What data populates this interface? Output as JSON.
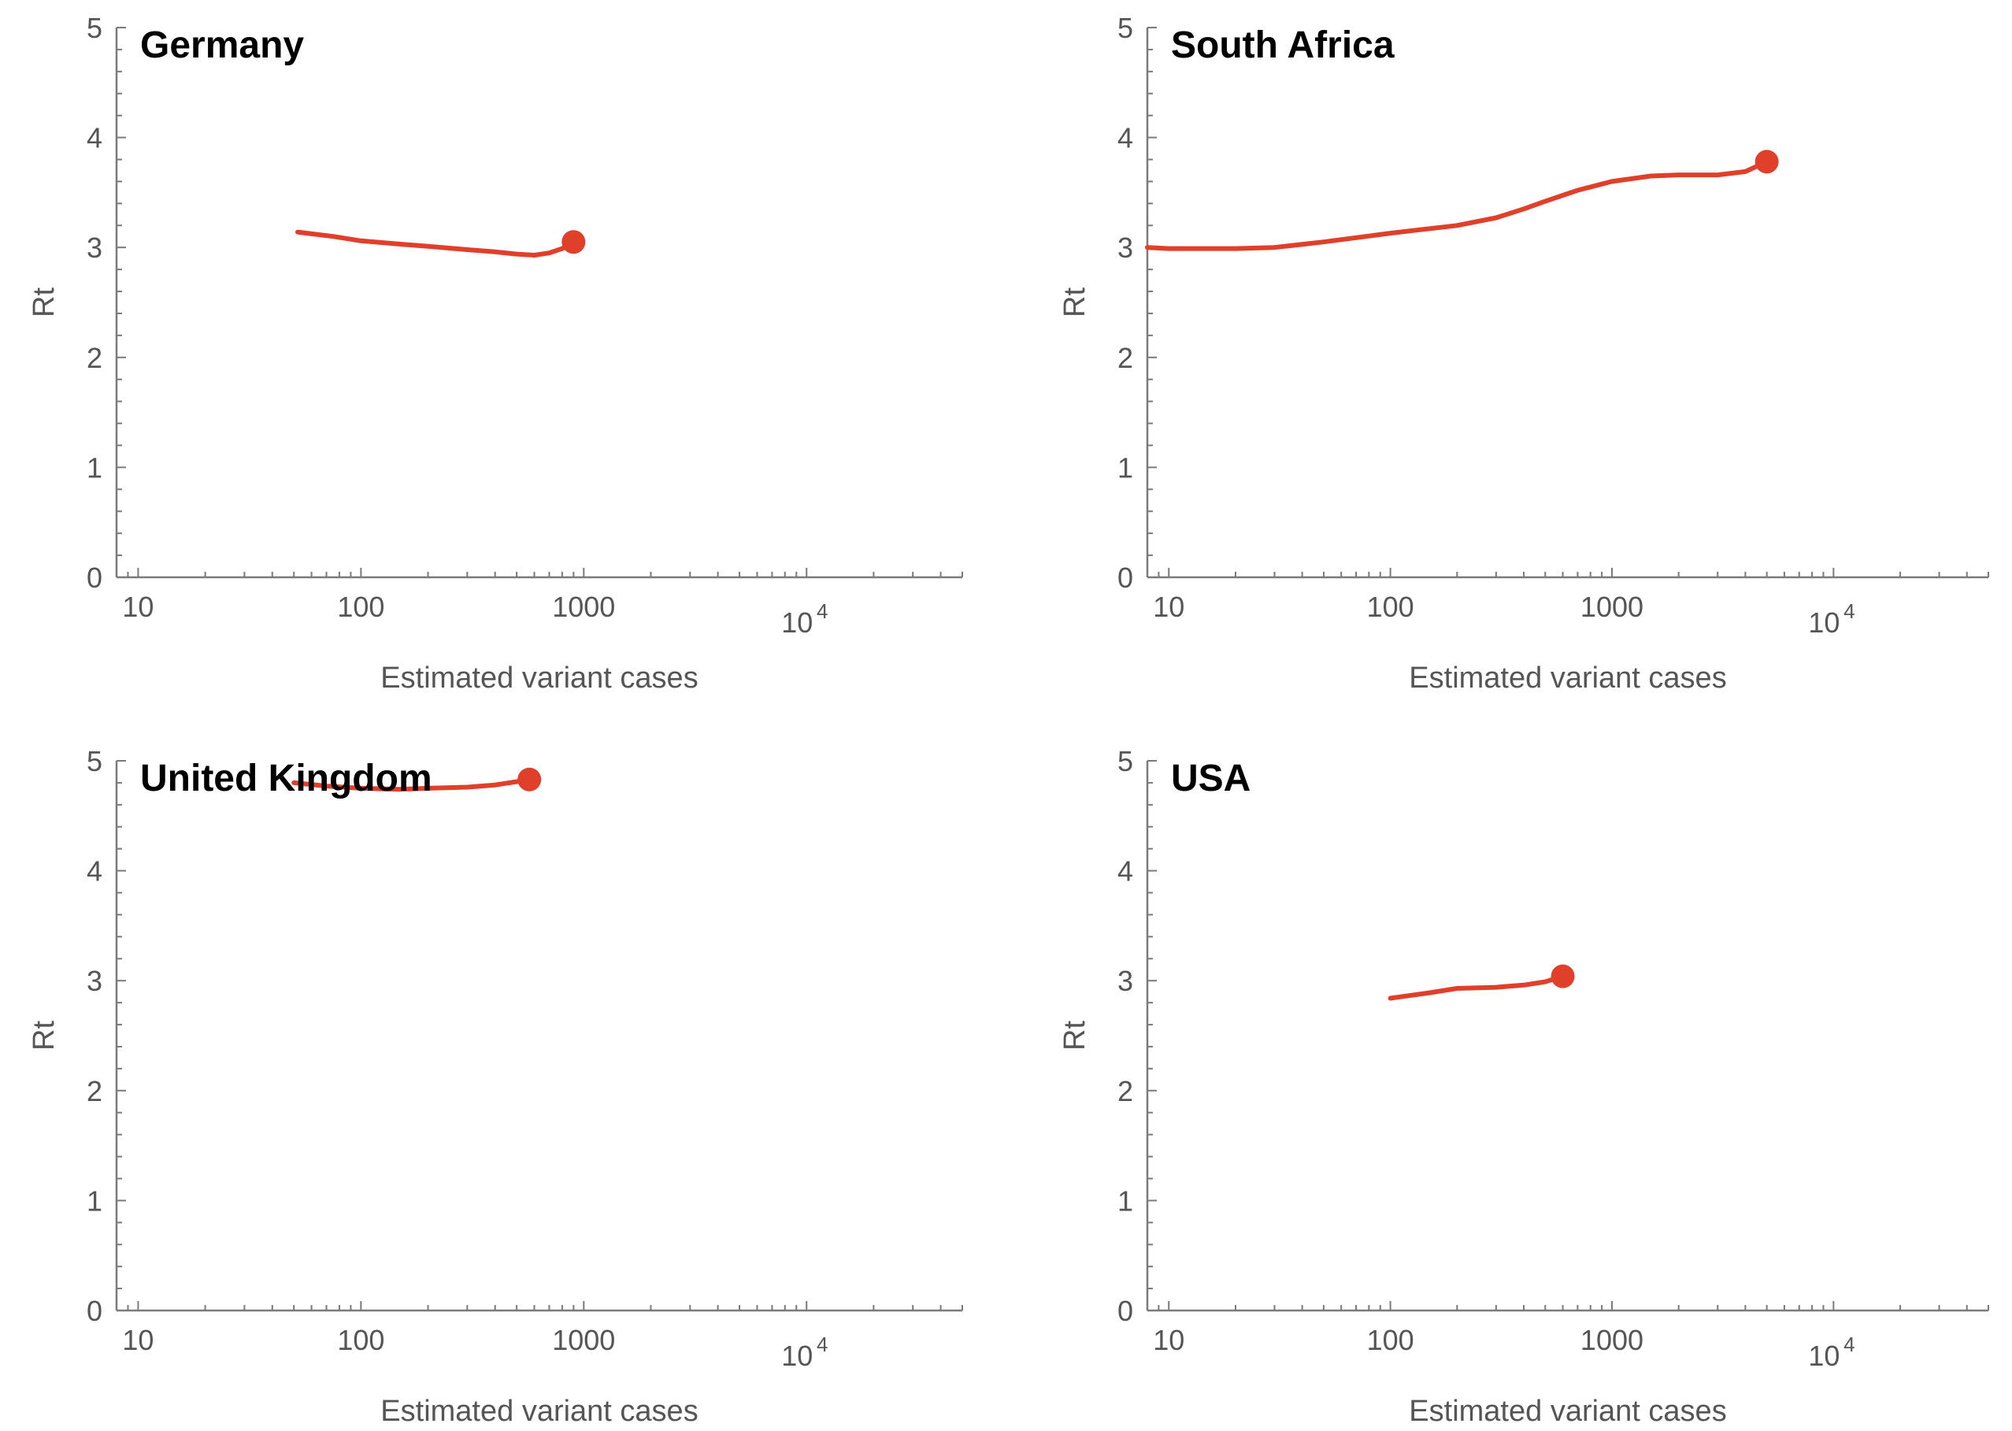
{
  "colors": {
    "series": "#e0402a",
    "axis": "#7a7a7a",
    "text": "#555555",
    "title": "#000000"
  },
  "chart_data": [
    {
      "type": "line",
      "title": "Germany",
      "xlabel": "Estimated variant cases",
      "ylabel": "Rt",
      "xscale": "log",
      "xlim": [
        8,
        50000
      ],
      "ylim": [
        0,
        5
      ],
      "yticks": [
        "0",
        "1",
        "2",
        "3",
        "4",
        "5"
      ],
      "xticks": [
        {
          "value": 10,
          "label": "10"
        },
        {
          "value": 100,
          "label": "100"
        },
        {
          "value": 1000,
          "label": "1000"
        },
        {
          "value": 10000,
          "label": "10",
          "exp": "4"
        }
      ],
      "grid": false,
      "end_marker": true,
      "series": [
        {
          "x": [
            52,
            75,
            100,
            150,
            200,
            300,
            400,
            500,
            600,
            700,
            800,
            900
          ],
          "y": [
            3.14,
            3.1,
            3.06,
            3.03,
            3.01,
            2.98,
            2.96,
            2.94,
            2.93,
            2.95,
            2.99,
            3.05
          ]
        }
      ]
    },
    {
      "type": "line",
      "title": "South Africa",
      "xlabel": "Estimated variant cases",
      "ylabel": "Rt",
      "xscale": "log",
      "xlim": [
        8,
        50000
      ],
      "ylim": [
        0,
        5
      ],
      "yticks": [
        "0",
        "1",
        "2",
        "3",
        "4",
        "5"
      ],
      "xticks": [
        {
          "value": 10,
          "label": "10"
        },
        {
          "value": 100,
          "label": "100"
        },
        {
          "value": 1000,
          "label": "1000"
        },
        {
          "value": 10000,
          "label": "10",
          "exp": "4"
        }
      ],
      "grid": false,
      "end_marker": true,
      "series": [
        {
          "x": [
            8,
            10,
            15,
            20,
            30,
            50,
            100,
            200,
            300,
            400,
            500,
            700,
            1000,
            1500,
            2000,
            3000,
            4000,
            5000
          ],
          "y": [
            3.0,
            2.99,
            2.99,
            2.99,
            3.0,
            3.05,
            3.13,
            3.2,
            3.27,
            3.35,
            3.42,
            3.52,
            3.6,
            3.65,
            3.66,
            3.66,
            3.69,
            3.78
          ]
        }
      ]
    },
    {
      "type": "line",
      "title": "United Kingdom",
      "xlabel": "Estimated variant cases",
      "ylabel": "Rt",
      "xscale": "log",
      "xlim": [
        8,
        50000
      ],
      "ylim": [
        0,
        5
      ],
      "yticks": [
        "0",
        "1",
        "2",
        "3",
        "4",
        "5"
      ],
      "xticks": [
        {
          "value": 10,
          "label": "10"
        },
        {
          "value": 100,
          "label": "100"
        },
        {
          "value": 1000,
          "label": "1000"
        },
        {
          "value": 10000,
          "label": "10",
          "exp": "4"
        }
      ],
      "grid": false,
      "end_marker": true,
      "series": [
        {
          "x": [
            50,
            70,
            100,
            150,
            200,
            300,
            400,
            500,
            570
          ],
          "y": [
            4.8,
            4.77,
            4.75,
            4.74,
            4.75,
            4.76,
            4.78,
            4.81,
            4.83
          ]
        }
      ]
    },
    {
      "type": "line",
      "title": "USA",
      "xlabel": "Estimated variant cases",
      "ylabel": "Rt",
      "xscale": "log",
      "xlim": [
        8,
        50000
      ],
      "ylim": [
        0,
        5
      ],
      "yticks": [
        "0",
        "1",
        "2",
        "3",
        "4",
        "5"
      ],
      "xticks": [
        {
          "value": 10,
          "label": "10"
        },
        {
          "value": 100,
          "label": "100"
        },
        {
          "value": 1000,
          "label": "1000"
        },
        {
          "value": 10000,
          "label": "10",
          "exp": "4"
        }
      ],
      "grid": false,
      "end_marker": true,
      "series": [
        {
          "x": [
            100,
            150,
            200,
            300,
            400,
            500,
            600
          ],
          "y": [
            2.84,
            2.89,
            2.93,
            2.94,
            2.96,
            2.99,
            3.04
          ]
        }
      ]
    }
  ]
}
